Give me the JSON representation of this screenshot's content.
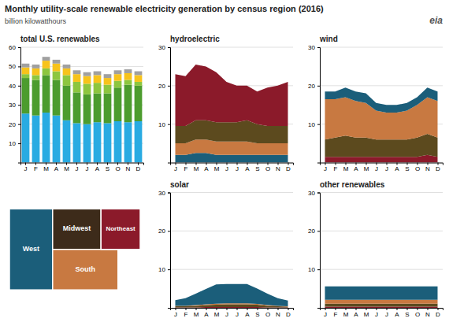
{
  "title": "Monthly utility-scale renewable electricity generation by census region (2016)",
  "ylabel": "billion kilowatthours",
  "annotations": [
    "eia"
  ],
  "chart_data": [
    {
      "type": "bar",
      "title": "total U.S. renewables",
      "stacked": true,
      "grid": true,
      "categories": [
        "J",
        "F",
        "M",
        "A",
        "M",
        "J",
        "J",
        "A",
        "S",
        "O",
        "N",
        "D"
      ],
      "ylim": [
        0,
        60
      ],
      "yticks": [
        10,
        20,
        30,
        40,
        50,
        60
      ],
      "series": [
        {
          "color": "#29ABE2",
          "values": [
            25.5,
            24.5,
            26.0,
            24.5,
            22.0,
            20.5,
            20.0,
            21.0,
            20.5,
            21.5,
            21.0,
            21.5
          ]
        },
        {
          "color": "#4C9C2E",
          "values": [
            18.5,
            18.5,
            19.5,
            18.5,
            18.0,
            16.0,
            15.5,
            15.0,
            15.5,
            17.5,
            19.5,
            18.5
          ]
        },
        {
          "color": "#8DC63F",
          "values": [
            2.0,
            2.5,
            3.5,
            4.5,
            5.5,
            5.5,
            5.5,
            5.5,
            4.5,
            3.5,
            2.5,
            2.0
          ]
        },
        {
          "color": "#F7C31B",
          "values": [
            3.5,
            3.5,
            4.0,
            4.0,
            3.5,
            4.0,
            4.0,
            4.0,
            3.5,
            3.5,
            3.5,
            3.5
          ]
        },
        {
          "color": "#A0A0A0",
          "values": [
            2.0,
            2.0,
            2.0,
            2.0,
            2.0,
            2.0,
            2.0,
            2.0,
            2.0,
            2.0,
            2.0,
            2.0
          ]
        }
      ]
    },
    {
      "type": "area",
      "title": "hydroelectric",
      "stacked": true,
      "grid": true,
      "categories": [
        "J",
        "F",
        "M",
        "A",
        "M",
        "J",
        "J",
        "A",
        "S",
        "O",
        "N",
        "D"
      ],
      "ylim": [
        0,
        30
      ],
      "yticks": [
        10,
        20,
        30
      ],
      "series": [
        {
          "color": "#1B5E7A",
          "values": [
            2.0,
            2.0,
            2.5,
            2.5,
            2.0,
            2.0,
            2.0,
            2.0,
            2.0,
            2.0,
            2.0,
            2.0
          ]
        },
        {
          "color": "#C87941",
          "values": [
            3.0,
            3.0,
            3.5,
            3.5,
            3.5,
            3.5,
            3.5,
            3.5,
            3.0,
            3.0,
            3.0,
            3.0
          ]
        },
        {
          "color": "#5C4A1E",
          "values": [
            4.5,
            4.5,
            5.0,
            5.0,
            5.0,
            5.0,
            5.0,
            5.5,
            5.0,
            4.5,
            4.5,
            4.5
          ]
        },
        {
          "color": "#8B1A2A",
          "values": [
            13.5,
            13.0,
            14.5,
            14.0,
            13.0,
            10.5,
            9.5,
            9.0,
            8.5,
            10.0,
            10.5,
            11.5
          ]
        }
      ]
    },
    {
      "type": "area",
      "title": "wind",
      "stacked": true,
      "grid": true,
      "categories": [
        "J",
        "F",
        "M",
        "A",
        "M",
        "J",
        "J",
        "A",
        "S",
        "O",
        "N",
        "D"
      ],
      "ylim": [
        0,
        30
      ],
      "yticks": [
        10,
        20,
        30
      ],
      "series": [
        {
          "color": "#8B1A2A",
          "values": [
            1.5,
            1.5,
            1.5,
            1.5,
            1.5,
            1.5,
            1.5,
            1.5,
            1.5,
            1.5,
            2.0,
            1.5
          ]
        },
        {
          "color": "#5C4A1E",
          "values": [
            4.5,
            5.0,
            5.5,
            5.0,
            5.0,
            4.5,
            4.5,
            4.5,
            4.5,
            5.0,
            5.5,
            5.0
          ]
        },
        {
          "color": "#C87941",
          "values": [
            10.5,
            10.0,
            10.0,
            9.5,
            9.0,
            7.5,
            7.0,
            7.0,
            7.5,
            8.5,
            9.5,
            9.5
          ]
        },
        {
          "color": "#1B5E7A",
          "values": [
            2.0,
            2.0,
            2.5,
            2.5,
            2.5,
            2.0,
            2.0,
            2.0,
            2.0,
            2.0,
            2.5,
            2.5
          ]
        }
      ]
    },
    {
      "type": "map",
      "categories": [
        "West",
        "Midwest",
        "South",
        "Northeast"
      ],
      "colors": [
        "#1B5E7A",
        "#3D2B1A",
        "#C87941",
        "#8B1A2A"
      ]
    },
    {
      "type": "area",
      "title": "solar",
      "stacked": true,
      "grid": true,
      "categories": [
        "J",
        "F",
        "M",
        "A",
        "M",
        "J",
        "J",
        "A",
        "S",
        "O",
        "N",
        "D"
      ],
      "ylim": [
        0,
        30
      ],
      "yticks": [
        10,
        20,
        30
      ],
      "series": [
        {
          "color": "#8B1A2A",
          "values": [
            0.1,
            0.1,
            0.1,
            0.2,
            0.2,
            0.2,
            0.2,
            0.2,
            0.2,
            0.1,
            0.1,
            0.1
          ]
        },
        {
          "color": "#5C4A1E",
          "values": [
            0.3,
            0.3,
            0.4,
            0.5,
            0.6,
            0.7,
            0.7,
            0.7,
            0.6,
            0.4,
            0.3,
            0.2
          ]
        },
        {
          "color": "#C87941",
          "values": [
            0.1,
            0.1,
            0.2,
            0.2,
            0.3,
            0.3,
            0.3,
            0.3,
            0.2,
            0.2,
            0.1,
            0.1
          ]
        },
        {
          "color": "#1B5E7A",
          "values": [
            1.5,
            2.0,
            3.0,
            4.0,
            5.0,
            5.0,
            5.0,
            5.0,
            4.0,
            3.0,
            2.0,
            1.5
          ]
        }
      ]
    },
    {
      "type": "area",
      "title": "other renewables",
      "stacked": true,
      "grid": true,
      "categories": [
        "J",
        "F",
        "M",
        "A",
        "M",
        "J",
        "J",
        "A",
        "S",
        "O",
        "N",
        "D"
      ],
      "ylim": [
        0,
        30
      ],
      "yticks": [
        10,
        20,
        30
      ],
      "series": [
        {
          "color": "#8B1A2A",
          "values": [
            0.3,
            0.3,
            0.3,
            0.3,
            0.3,
            0.3,
            0.3,
            0.3,
            0.3,
            0.3,
            0.3,
            0.3
          ]
        },
        {
          "color": "#5C4A1E",
          "values": [
            0.8,
            0.8,
            0.8,
            0.8,
            0.8,
            0.8,
            0.8,
            0.8,
            0.8,
            0.8,
            0.8,
            0.8
          ]
        },
        {
          "color": "#C87941",
          "values": [
            1.0,
            1.0,
            1.0,
            1.0,
            1.0,
            1.0,
            1.0,
            1.0,
            1.0,
            1.0,
            1.0,
            1.0
          ]
        },
        {
          "color": "#1B5E7A",
          "values": [
            3.5,
            3.5,
            3.5,
            3.5,
            3.5,
            3.5,
            3.5,
            3.5,
            3.5,
            3.5,
            3.5,
            3.5
          ]
        }
      ]
    }
  ]
}
